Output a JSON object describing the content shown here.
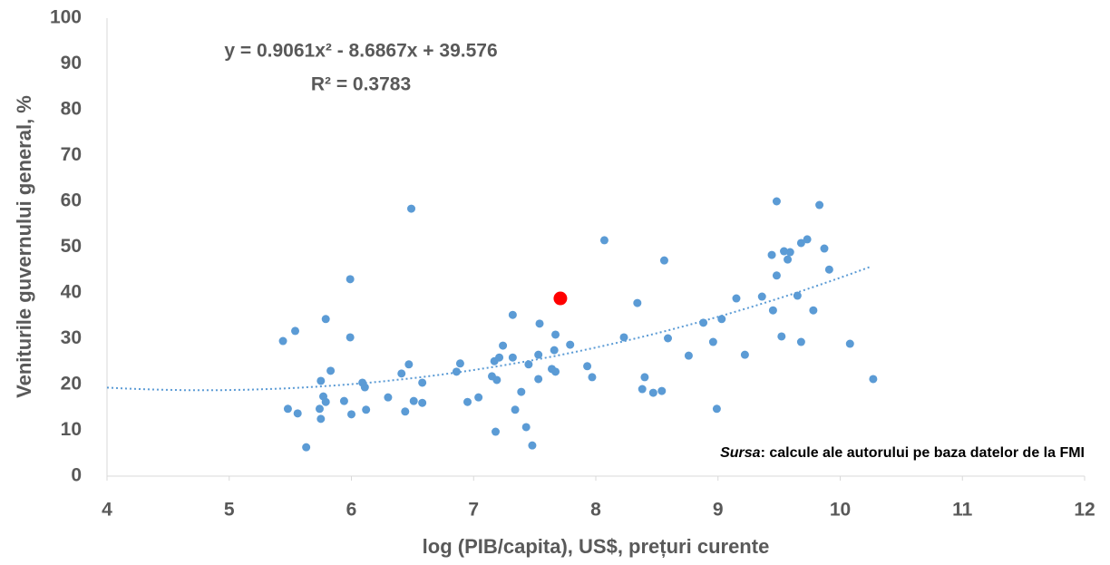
{
  "chart_data": {
    "type": "scatter",
    "xlabel": "log (PIB/capita), US$, prețuri curente",
    "ylabel": "Veniturile guvernului general, %",
    "xlim": [
      4,
      12
    ],
    "xticks": [
      4,
      5,
      6,
      7,
      8,
      9,
      10,
      11,
      12
    ],
    "ylim": [
      0,
      100
    ],
    "yticks": [
      0,
      10,
      20,
      30,
      40,
      50,
      60,
      70,
      80,
      90,
      100
    ],
    "grid": false,
    "series": [
      {
        "color": "#5b9bd5",
        "x": [
          5.44,
          5.48,
          5.54,
          5.56,
          5.63,
          5.74,
          5.75,
          5.75,
          5.77,
          5.79,
          5.79,
          5.83,
          5.94,
          5.99,
          5.99,
          6.0,
          6.09,
          6.11,
          6.12,
          6.3,
          6.41,
          6.44,
          6.47,
          6.49,
          6.51,
          6.58,
          6.58,
          6.86,
          6.89,
          6.95,
          7.04,
          7.15,
          7.17,
          7.18,
          7.19,
          7.21,
          7.24,
          7.32,
          7.32,
          7.34,
          7.39,
          7.43,
          7.45,
          7.48,
          7.53,
          7.53,
          7.54,
          7.64,
          7.66,
          7.67,
          7.67,
          7.79,
          7.93,
          7.97,
          8.07,
          8.23,
          8.34,
          8.38,
          8.4,
          8.47,
          8.54,
          8.56,
          8.59,
          8.76,
          8.88,
          8.96,
          8.99,
          9.03,
          9.15,
          9.22,
          9.36,
          9.44,
          9.45,
          9.48,
          9.48,
          9.52,
          9.54,
          9.57,
          9.59,
          9.65,
          9.68,
          9.68,
          9.73,
          9.78,
          9.83,
          9.87,
          9.91,
          10.08,
          10.27
        ],
        "values": [
          29.5,
          14.7,
          31.7,
          13.7,
          6.3,
          14.7,
          20.8,
          12.5,
          17.4,
          16.2,
          34.3,
          23.0,
          16.4,
          43.0,
          30.3,
          13.5,
          20.4,
          19.4,
          14.5,
          17.2,
          22.4,
          14.1,
          24.4,
          58.4,
          16.4,
          20.4,
          16.0,
          22.8,
          24.6,
          16.2,
          17.2,
          21.8,
          25.1,
          9.7,
          21.0,
          25.9,
          28.5,
          35.2,
          25.9,
          14.5,
          18.4,
          10.7,
          24.4,
          6.7,
          21.2,
          26.5,
          33.3,
          23.4,
          27.5,
          30.9,
          22.8,
          28.7,
          24.0,
          21.6,
          51.5,
          30.3,
          37.8,
          19.0,
          21.6,
          18.2,
          18.6,
          47.1,
          30.1,
          26.3,
          33.5,
          29.3,
          14.7,
          34.3,
          38.8,
          26.5,
          39.2,
          48.3,
          36.2,
          60.0,
          43.8,
          30.5,
          49.1,
          47.3,
          48.9,
          39.4,
          29.3,
          50.9,
          51.7,
          36.2,
          59.2,
          49.7,
          45.1,
          28.9,
          21.2
        ]
      },
      {
        "color": "#ff0000",
        "x": [
          7.71
        ],
        "values": [
          38.8
        ]
      }
    ],
    "trendline": {
      "equation": "y = 0.9061x² - 8.6867x + 39.576",
      "r2": "R² = 0.3783",
      "coefficients": [
        0.9061,
        -8.6867,
        39.576
      ],
      "xlim": [
        4,
        10.25
      ],
      "color": "#5b9bd5"
    },
    "source_label": "Sursa",
    "source_text": ": calcule ale autorului pe baza datelor de la FMI"
  }
}
